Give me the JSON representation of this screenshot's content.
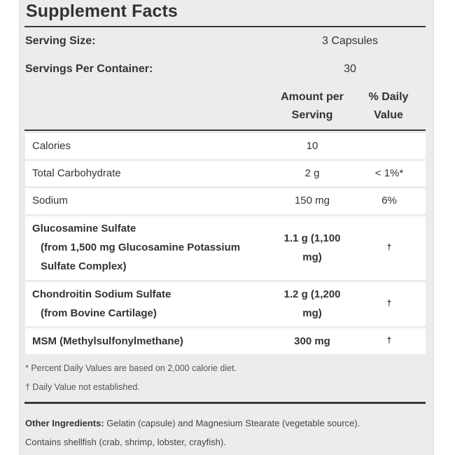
{
  "title": "Supplement Facts",
  "serving_size": {
    "label": "Serving Size:",
    "value": "3 Capsules"
  },
  "servings_per_container": {
    "label": "Servings Per Container:",
    "value": "30"
  },
  "headers": {
    "amount_line1": "Amount per",
    "amount_line2": "Serving",
    "dv_line1": "% Daily",
    "dv_line2": "Value"
  },
  "rows": [
    {
      "name": "Calories",
      "amount": "10",
      "dv": ""
    },
    {
      "name": "Total Carbohydrate",
      "amount": "2 g",
      "dv": "< 1%*"
    },
    {
      "name": "Sodium",
      "amount": "150 mg",
      "dv": "6%"
    },
    {
      "name": "Glucosamine Sulfate",
      "sub1": "(from 1,500 mg Glucosamine Potassium",
      "sub2": "Sulfate Complex)",
      "amount_line1": "1.1 g (1,100",
      "amount_line2": "mg)",
      "dv": "†"
    },
    {
      "name": "Chondroitin Sodium Sulfate",
      "sub1": "(from Bovine Cartilage)",
      "amount_line1": "1.2 g (1,200",
      "amount_line2": "mg)",
      "dv": "†"
    },
    {
      "name": "MSM (Methylsulfonylmethane)",
      "amount": "300 mg",
      "dv": "†"
    }
  ],
  "footnotes": {
    "percent_dv": "* Percent Daily Values are based on 2,000 calorie diet.",
    "not_established": "† Daily Value not established."
  },
  "other_ingredients": {
    "label": "Other Ingredients:",
    "text": " Gelatin (capsule) and Magnesium Stearate (vegetable source).",
    "allergen": "Contains shellfish (crab, shrimp, lobster, crayfish)."
  }
}
